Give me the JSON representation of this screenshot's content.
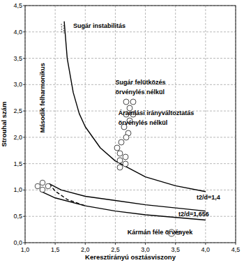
{
  "chart_data": {
    "type": "line",
    "xlabel": "Keresztirányú osztásviszony",
    "ylabel": "Strouhal szám",
    "xlim": [
      1.0,
      4.5
    ],
    "ylim": [
      0,
      4.5
    ],
    "xticks": [
      {
        "value": 1.0,
        "label": "1,0"
      },
      {
        "value": 1.5,
        "label": "1,5"
      },
      {
        "value": 2.0,
        "label": "2,0"
      },
      {
        "value": 2.5,
        "label": "2,5"
      },
      {
        "value": 3.0,
        "label": "3,0"
      },
      {
        "value": 3.5,
        "label": "3,5"
      },
      {
        "value": 4.0,
        "label": "4,0"
      },
      {
        "value": 4.5,
        "label": "4,5"
      }
    ],
    "yticks": [
      {
        "value": 0,
        "label": "0,0"
      },
      {
        "value": 0.5,
        "label": "0,5"
      },
      {
        "value": 1.0,
        "label": "1,0"
      },
      {
        "value": 1.5,
        "label": "1,5"
      },
      {
        "value": 2.0,
        "label": "2,0"
      },
      {
        "value": 2.5,
        "label": "2,5"
      },
      {
        "value": 3.0,
        "label": "3,0"
      },
      {
        "value": 3.5,
        "label": "3,5"
      },
      {
        "value": 4.0,
        "label": "4,0"
      },
      {
        "value": 4.5,
        "label": "4,5"
      }
    ],
    "grid": true,
    "series": [
      {
        "x": [
          1.65,
          1.7,
          1.8,
          1.9,
          2.0,
          2.25,
          2.5,
          3.0,
          3.5,
          4.0
        ],
        "values": [
          4.2,
          3.5,
          2.85,
          2.45,
          2.2,
          1.8,
          1.55,
          1.25,
          1.08,
          0.97
        ],
        "color": "#000000",
        "line_style": "solid"
      },
      {
        "x": [
          1.4,
          1.6,
          2.0,
          2.5,
          3.0,
          3.5,
          4.0
        ],
        "values": [
          1.12,
          1.0,
          0.88,
          0.8,
          0.72,
          0.66,
          0.6
        ],
        "color": "#000000",
        "line_style": "solid"
      },
      {
        "x": [
          1.25,
          1.5,
          2.0,
          2.5,
          3.0,
          3.5,
          4.0
        ],
        "values": [
          0.98,
          0.85,
          0.7,
          0.6,
          0.53,
          0.48,
          0.43
        ],
        "color": "#000000",
        "line_style": "solid"
      },
      {
        "x": [
          1.4,
          1.5,
          1.7,
          2.0
        ],
        "values": [
          1.12,
          0.98,
          0.82,
          0.7
        ],
        "color": "#000000",
        "line_style": "dashed"
      }
    ],
    "annotations": [
      {
        "text": "Sugár instabilitás",
        "x": 1.8,
        "y": 4.08
      },
      {
        "text": "Sugár felütközés",
        "x": 2.5,
        "y": 3.0
      },
      {
        "text": "örvénylés nélkül",
        "x": 2.5,
        "y": 2.82
      },
      {
        "text": "Áramlási irányváltoztatás",
        "x": 2.55,
        "y": 2.42
      },
      {
        "text": "örvénylés nélkül",
        "x": 2.55,
        "y": 2.24
      },
      {
        "text": "Második felharmonikus",
        "x": 1.33,
        "y": 2.75,
        "orientation": "vertical"
      },
      {
        "text": "t2/d=1,4",
        "x": 3.85,
        "y": 0.82
      },
      {
        "text": "t2/d=1,656",
        "x": 3.55,
        "y": 0.5
      },
      {
        "text": "Kármán féle örvények",
        "x": 2.7,
        "y": 0.16
      }
    ]
  }
}
